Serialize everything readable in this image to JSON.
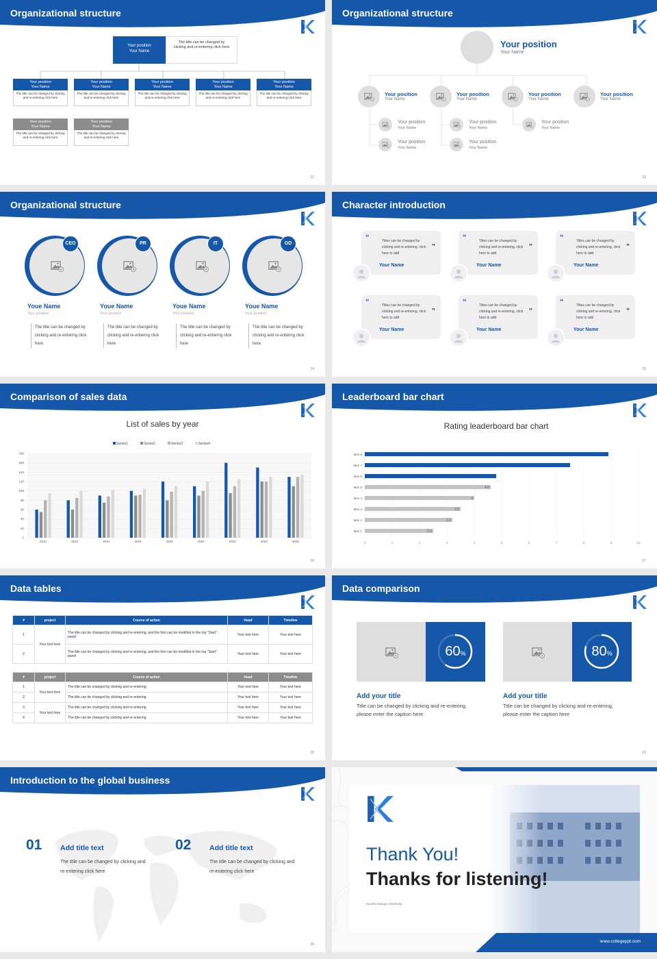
{
  "colors": {
    "brand": "#1557a8",
    "gray": "#8c8c8c",
    "light": "#c8c8c8"
  },
  "logo_icon": "k-logo-icon",
  "s22": {
    "title": "Organizational structure",
    "page": "22",
    "top": {
      "position": "Your position",
      "name": "Your Name",
      "desc": "The title can be changed by clicking and re-entering click here"
    },
    "row1": [
      {
        "position": "Your position",
        "name": "Your Name",
        "desc": "The title can be changed by clicking and re-entering click here"
      },
      {
        "position": "Your position",
        "name": "Your Name",
        "desc": "The title can be changed by clicking and re-entering click here"
      },
      {
        "position": "Your position",
        "name": "Your Name",
        "desc": "The title can be changed by clicking and re-entering click here"
      },
      {
        "position": "Your position",
        "name": "Your Name",
        "desc": "The title can be changed by clicking and re-entering click here"
      },
      {
        "position": "Your position",
        "name": "Your Name",
        "desc": "The title can be changed by clicking and re-entering click here"
      }
    ],
    "row2": [
      {
        "position": "Your position",
        "name": "Your Name",
        "desc": "The title can be changed by clicking and re-entering click here"
      },
      {
        "position": "Your position",
        "name": "Your Name",
        "desc": "The title can be changed by clicking and re-entering click here"
      }
    ]
  },
  "s23": {
    "title": "Organizational structure",
    "page": "23",
    "top": {
      "position": "Your position",
      "name": "Your Name"
    },
    "level": [
      {
        "position": "Your position",
        "name": "Your Name"
      },
      {
        "position": "Your position",
        "name": "Your Name"
      },
      {
        "position": "Your position",
        "name": "Your Name"
      },
      {
        "position": "Your position",
        "name": "Your Name"
      }
    ],
    "sub": [
      {
        "position": "Your position",
        "name": "Your Name"
      },
      {
        "position": "Your position",
        "name": "Your Name"
      },
      {
        "position": "Your position",
        "name": "Your Name"
      },
      {
        "position": "Your position",
        "name": "Your Name"
      },
      {
        "position": "Your position",
        "name": "Your Name"
      }
    ]
  },
  "s24": {
    "title": "Organizational structure",
    "page": "24",
    "people": [
      {
        "badge": "CEO",
        "name": "Youe Name",
        "position": "Your position",
        "desc": "The title can be changed by clicking and re-entering click here"
      },
      {
        "badge": "PR",
        "name": "Youe Name",
        "position": "Your position",
        "desc": "The title can be changed by clicking and re-entering click here"
      },
      {
        "badge": "IT",
        "name": "Youe Name",
        "position": "Your position",
        "desc": "The title can be changed by clicking and re-entering click here"
      },
      {
        "badge": "GD",
        "name": "Youe Name",
        "position": "Your position",
        "desc": "The title can be changed by clicking and re-entering click here"
      }
    ]
  },
  "s25": {
    "title": "Character introduction",
    "page": "25",
    "quotes": [
      {
        "text": "Titles can be changed by clicking and re-entering, click here to add",
        "name": "Your Name"
      },
      {
        "text": "Titles can be changed by clicking and re-entering, click here to add",
        "name": "Your Name"
      },
      {
        "text": "Titles can be changed by clicking and re-entering, click here to add",
        "name": "Your Name"
      },
      {
        "text": "Titles can be changed by clicking and re-entering, click here to add",
        "name": "Your Name"
      },
      {
        "text": "Titles can be changed by clicking and re-entering, click here to add",
        "name": "Your Name"
      },
      {
        "text": "Titles can be changed by clicking and re-entering, click here to add",
        "name": "Your Name"
      }
    ]
  },
  "s26": {
    "title": "Comparison of sales data",
    "page": "26"
  },
  "s27": {
    "title": "Leaderboard bar chart",
    "page": "27"
  },
  "chart_data": [
    {
      "type": "bar",
      "title": "List of sales by year",
      "categories": [
        "2010",
        "2012",
        "2014",
        "2016",
        "2018",
        "2020",
        "2022",
        "2024",
        "2026"
      ],
      "series": [
        {
          "name": "Series1",
          "values": [
            60,
            80,
            90,
            100,
            120,
            110,
            160,
            150,
            130
          ]
        },
        {
          "name": "Series2",
          "values": [
            55,
            60,
            75,
            90,
            80,
            90,
            95,
            120,
            110
          ]
        },
        {
          "name": "Series3",
          "values": [
            80,
            85,
            88,
            92,
            98,
            100,
            110,
            120,
            130
          ]
        },
        {
          "name": "Series4",
          "values": [
            95,
            100,
            102,
            105,
            110,
            120,
            125,
            130,
            135
          ]
        }
      ],
      "yticks": [
        "0",
        "20",
        "40",
        "60",
        "80",
        "100",
        "120",
        "140",
        "160",
        "180"
      ],
      "ylim": [
        0,
        180
      ],
      "legend": "top"
    },
    {
      "type": "bar",
      "orientation": "horizontal",
      "title": "Rating leaderboard bar chart",
      "categories": [
        "Item 1",
        "Item 2",
        "Item 3",
        "Item 4",
        "Item 5",
        "Item 6",
        "Item 7",
        "Item 8"
      ],
      "values": [
        2.5,
        3.2,
        3.5,
        4,
        4.6,
        4.8,
        7.5,
        8.9
      ],
      "value_labels": [
        "2.5",
        "3.2",
        "3.5",
        "4",
        "4.6",
        "",
        "",
        ""
      ],
      "xticks": [
        "0",
        "1",
        "2",
        "3",
        "4",
        "5",
        "6",
        "7",
        "8",
        "9",
        "10"
      ],
      "xlim": [
        0,
        10
      ]
    }
  ],
  "s28": {
    "title": "Data tables",
    "page": "28",
    "t1head": [
      "#",
      "project",
      "Course of action",
      "Head",
      "Timeline"
    ],
    "t1": [
      {
        "n": "1",
        "p": "Your text here",
        "c": "The title can be changed by clicking and re-entering, and the font can be modified in the top \"Start\" panel",
        "h": "Your text here",
        "t": "Your text here"
      },
      {
        "n": "2",
        "c": "The title can be changed by clicking and re-entering, and the font can be modified in the top \"Start\" panel",
        "h": "Your text here",
        "t": "Your text here"
      }
    ],
    "t2head": [
      "#",
      "project",
      "Course of action",
      "Head",
      "Timeline"
    ],
    "t2": [
      {
        "n": "1",
        "p": "Your text here",
        "c": "The title can be changed by clicking and re-entering",
        "h": "Your text here",
        "t": "Your text here"
      },
      {
        "n": "2",
        "c": "The title can be changed by clicking and re-entering",
        "h": "Your text here",
        "t": "Your text here"
      },
      {
        "n": "3",
        "p": "Your text here",
        "c": "The title can be changed by clicking and re-entering",
        "h": "Your text here",
        "t": "Your text here"
      },
      {
        "n": "4",
        "c": "The title can be changed by clicking and re-entering",
        "h": "Your text here",
        "t": "Your text here"
      }
    ]
  },
  "s29": {
    "title": "Data comparison",
    "page": "29",
    "cards": [
      {
        "value": "60",
        "unit": "%",
        "fraction": 0.6,
        "title": "Add your title",
        "desc": "Title can be changed by clicking and re-entering, please enter the caption here"
      },
      {
        "value": "80",
        "unit": "%",
        "fraction": 0.8,
        "title": "Add your title",
        "desc": "Title can be changed by clicking and re-entering, please enter the caption here"
      }
    ]
  },
  "s30": {
    "title": "Introduction to the global business",
    "page": "30",
    "items": [
      {
        "num": "01",
        "title": "Add title text",
        "desc": "The title can be changed by clicking and re-entering click here"
      },
      {
        "num": "02",
        "title": "Add title text",
        "desc": "The title can be changed by clicking and re-entering click here"
      }
    ]
  },
  "s31": {
    "thanks1": "Thank You!",
    "thanks2": "Thanks for listening!",
    "university": "Kyushu Sangyo University",
    "url": "www.collegeppt.com"
  }
}
